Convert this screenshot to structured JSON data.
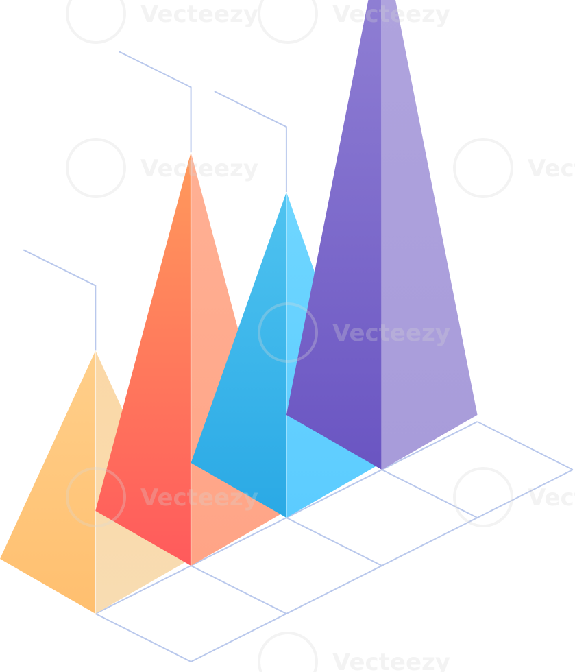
{
  "chart_data": {
    "type": "bar",
    "style": "isometric-pyramid",
    "categories": [
      "",
      "",
      "",
      ""
    ],
    "values": [
      2.1,
      3.3,
      2.6,
      4.3
    ],
    "ylim": [
      0,
      4.5
    ],
    "grid": true,
    "colors": [
      {
        "left_top": "#ffcf8a",
        "left_bottom": "#ffbf6f",
        "right_top": "#fbd8a6",
        "right_bottom": "#f8dcb2"
      },
      {
        "left_top": "#ff9a5c",
        "left_bottom": "#ff5a5c",
        "right_top": "#ffb094",
        "right_bottom": "#ffa486"
      },
      {
        "left_top": "#4fc3f0",
        "left_bottom": "#2aa9e5",
        "right_top": "#6fd6ff",
        "right_bottom": "#5cccff"
      },
      {
        "left_top": "#9484d6",
        "left_bottom": "#6a55c2",
        "right_top": "#b0a4de",
        "right_bottom": "#a89cda"
      }
    ],
    "grid_color": "#b9c8ec",
    "leader_color": "#b9c8ec"
  },
  "watermark": {
    "text": "Vecteezy"
  }
}
